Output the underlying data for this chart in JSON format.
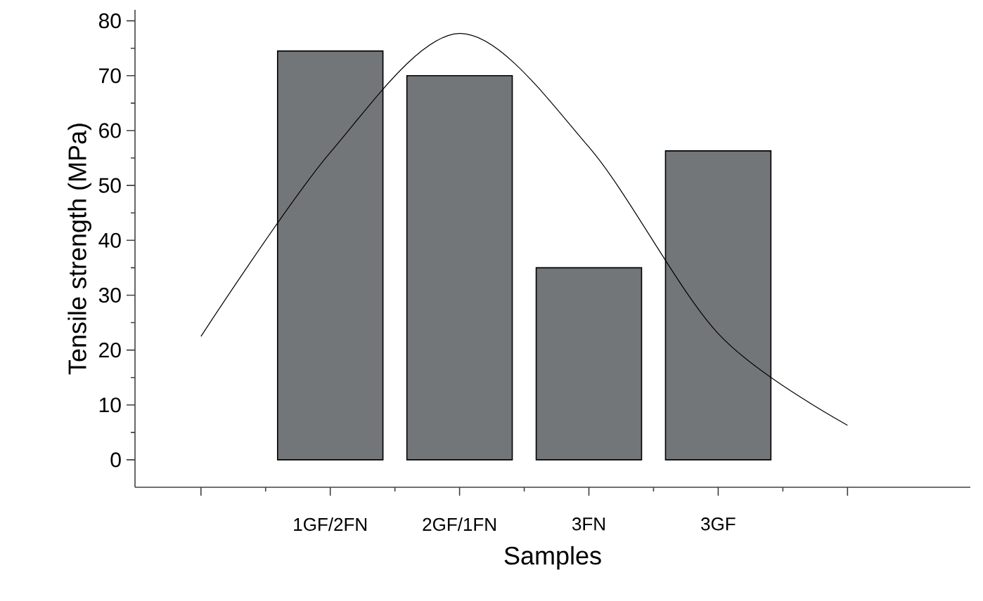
{
  "chart_data": {
    "type": "bar",
    "xlabel": "Samples",
    "ylabel": "Tensile strength (MPa)",
    "categories": [
      null,
      "1GF/2FN",
      "2GF/1FN",
      "3FN",
      "3GF",
      null
    ],
    "ylim": [
      -5,
      82
    ],
    "yticks": [
      0,
      10,
      20,
      30,
      40,
      50,
      60,
      70,
      80
    ],
    "series": [
      {
        "color": "#737678",
        "values": [
          null,
          74.5,
          70.0,
          35.0,
          56.3,
          null
        ]
      },
      {
        "type": "line",
        "color": "#000000",
        "values": [
          22.5,
          56,
          77.7,
          57,
          23,
          6.3
        ]
      }
    ]
  }
}
